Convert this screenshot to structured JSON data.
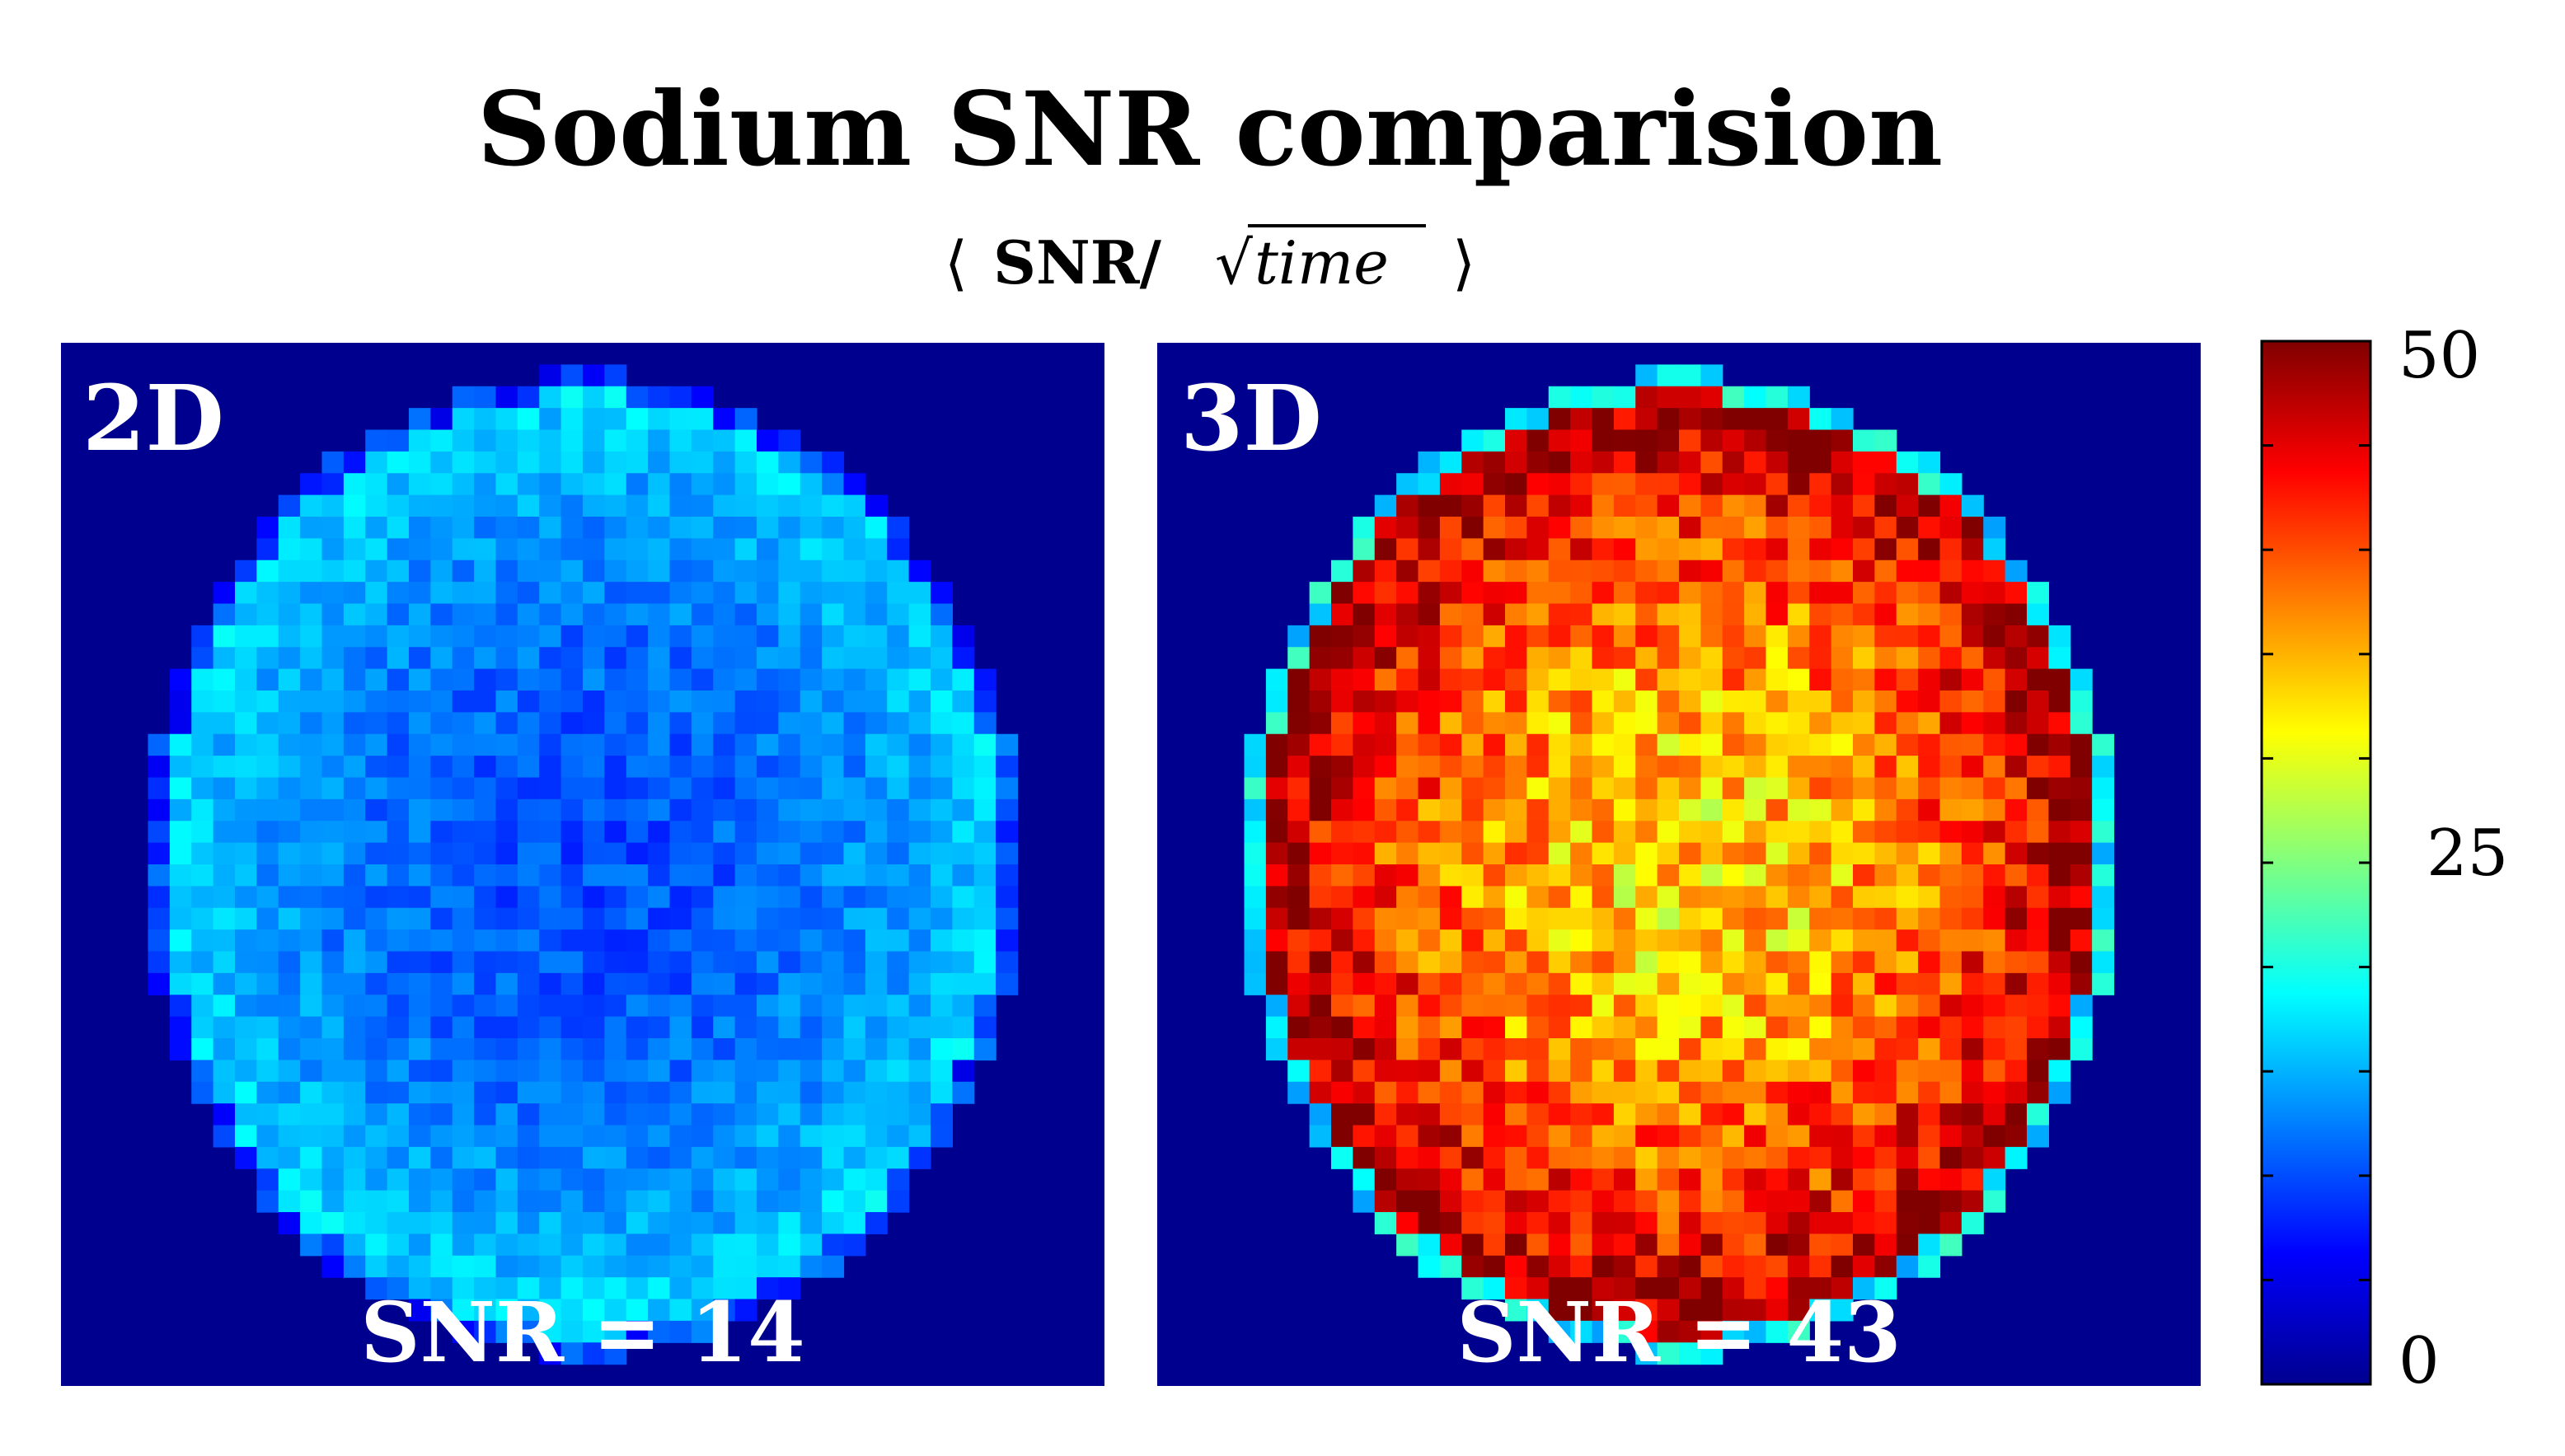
{
  "chart_data": {
    "type": "heatmap",
    "title": "Sodium SNR comparision",
    "subtitle": {
      "left_bracket": "⟨",
      "bold_part": "SNR/",
      "radical": "√",
      "italic_part": "time",
      "right_bracket": "⟩"
    },
    "colorbar": {
      "colormap": "jet",
      "range": [
        0,
        50
      ],
      "tick_labels": [
        "0",
        "25",
        "50"
      ],
      "tick_values": [
        0,
        25,
        50
      ]
    },
    "panels": [
      {
        "label": "2D",
        "annotation": "SNR = 14",
        "mean_snr": 14,
        "grid_size": 48,
        "center_value": 10,
        "edge_value": 17,
        "noise": 2.5,
        "rim_value": 9
      },
      {
        "label": "3D",
        "annotation": "SNR = 43",
        "mean_snr": 43,
        "grid_size": 48,
        "center_value": 33,
        "edge_value": 49,
        "noise": 6,
        "rim_value": 18
      }
    ]
  },
  "colors": {
    "background_field": "#00008f",
    "panel_text": "#ffffff"
  }
}
